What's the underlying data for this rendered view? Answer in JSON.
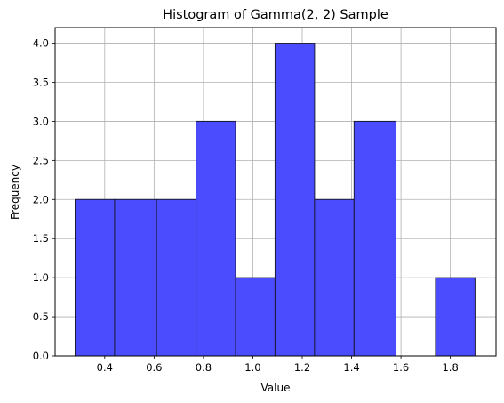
{
  "chart_data": {
    "type": "bar",
    "title": "Histogram of Gamma(2, 2) Sample",
    "xlabel": "Value",
    "ylabel": "Frequency",
    "xlim": [
      0.199,
      1.985
    ],
    "ylim": [
      0,
      4.2
    ],
    "grid": true,
    "bar_color": "#4c4cff",
    "bar_edge_color": "#1a1a33",
    "bins": [
      {
        "start": 0.28,
        "end": 0.44,
        "value": 2
      },
      {
        "start": 0.44,
        "end": 0.61,
        "value": 2
      },
      {
        "start": 0.61,
        "end": 0.77,
        "value": 2
      },
      {
        "start": 0.77,
        "end": 0.93,
        "value": 3
      },
      {
        "start": 0.93,
        "end": 1.09,
        "value": 1
      },
      {
        "start": 1.09,
        "end": 1.25,
        "value": 4
      },
      {
        "start": 1.25,
        "end": 1.41,
        "value": 2
      },
      {
        "start": 1.41,
        "end": 1.58,
        "value": 3
      },
      {
        "start": 1.58,
        "end": 1.74,
        "value": 0
      },
      {
        "start": 1.74,
        "end": 1.9,
        "value": 1
      }
    ],
    "x_ticks": [
      {
        "value": 0.4,
        "label": "0.4"
      },
      {
        "value": 0.6,
        "label": "0.6"
      },
      {
        "value": 0.8,
        "label": "0.8"
      },
      {
        "value": 1.0,
        "label": "1.0"
      },
      {
        "value": 1.2,
        "label": "1.2"
      },
      {
        "value": 1.4,
        "label": "1.4"
      },
      {
        "value": 1.6,
        "label": "1.6"
      },
      {
        "value": 1.8,
        "label": "1.8"
      }
    ],
    "y_ticks": [
      {
        "value": 0.0,
        "label": "0.0"
      },
      {
        "value": 0.5,
        "label": "0.5"
      },
      {
        "value": 1.0,
        "label": "1.0"
      },
      {
        "value": 1.5,
        "label": "1.5"
      },
      {
        "value": 2.0,
        "label": "2.0"
      },
      {
        "value": 2.5,
        "label": "2.5"
      },
      {
        "value": 3.0,
        "label": "3.0"
      },
      {
        "value": 3.5,
        "label": "3.5"
      },
      {
        "value": 4.0,
        "label": "4.0"
      }
    ]
  }
}
